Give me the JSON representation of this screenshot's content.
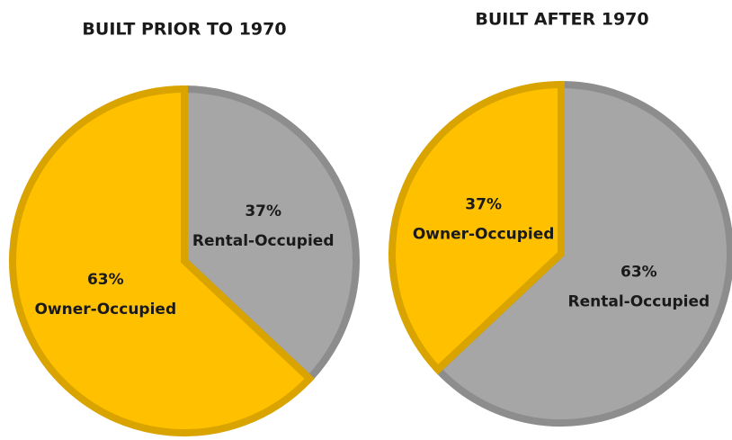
{
  "chart_data": [
    {
      "type": "pie",
      "title": "BUILT PRIOR TO 1970",
      "categories": [
        "Rental-Occupied",
        "Owner-Occupied"
      ],
      "values": [
        37,
        63
      ],
      "value_labels": [
        "37%",
        "63%"
      ],
      "colors": [
        "#a6a6a6",
        "#ffc000"
      ]
    },
    {
      "type": "pie",
      "title": "BUILT AFTER 1970",
      "categories": [
        "Rental-Occupied",
        "Owner-Occupied"
      ],
      "values": [
        63,
        37
      ],
      "value_labels": [
        "63%",
        "37%"
      ],
      "colors": [
        "#a6a6a6",
        "#ffc000"
      ]
    }
  ]
}
